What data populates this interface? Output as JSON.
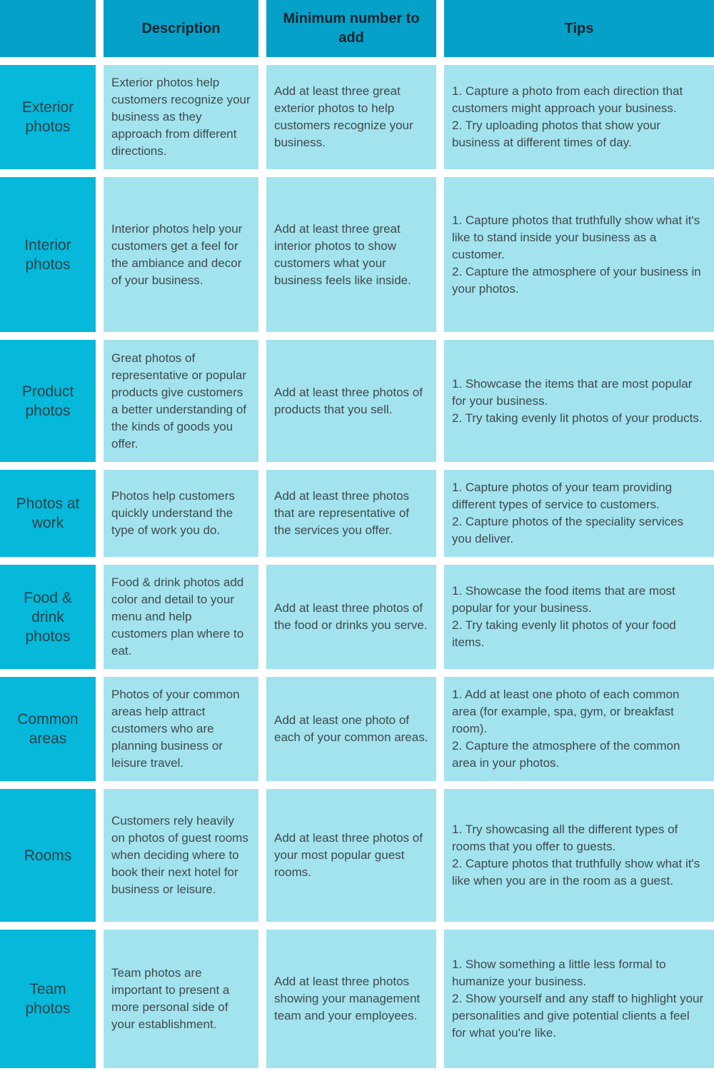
{
  "header": {
    "corner": "",
    "description": "Description",
    "minimum": "Minimum number to add",
    "tips": "Tips"
  },
  "rows": [
    {
      "label": "Exterior photos",
      "description": "Exterior photos help customers recognize your business as they approach from different directions.",
      "minimum": "Add at least three great exterior photos to help customers recognize your business.",
      "tips": "1. Capture a photo from each direction that customers might approach your business.\n2. Try uploading photos that show your business at different times of day."
    },
    {
      "label": "Interior photos",
      "description": "Interior photos help your customers get a feel for the ambiance and decor of your business.",
      "minimum": "Add at least three great interior photos to show customers what your business feels like inside.",
      "tips": "1. Capture photos that truthfully show what it's like to stand inside your business as a customer.\n2. Capture the atmosphere of your business in your photos."
    },
    {
      "label": "Product photos",
      "description": "Great photos of representative or popular products give customers a better understanding of the kinds of goods you offer.",
      "minimum": "Add at least three photos of products that you sell.",
      "tips": "1. Showcase the items that are most popular for your business.\n2. Try taking evenly lit photos of your products."
    },
    {
      "label": "Photos at work",
      "description": "Photos help customers quickly understand the type of work you do.",
      "minimum": "Add at least three photos that are representative of the services you offer.",
      "tips": "1. Capture photos of your team providing different types of service to customers.\n2. Capture photos of the speciality services you deliver."
    },
    {
      "label": "Food & drink photos",
      "description": "Food & drink photos add color and detail to your menu and help customers plan where to eat.",
      "minimum": "Add at least three photos of the food or drinks you serve.",
      "tips": "1. Showcase the food items that are most popular for your business.\n2. Try taking evenly lit photos of your food items."
    },
    {
      "label": "Common areas",
      "description": "Photos of your common areas help attract customers who are planning business or leisure travel.",
      "minimum": "Add at least one photo of each of your common areas.",
      "tips": "1. Add at least one photo of each common area (for example, spa, gym, or breakfast room).\n2. Capture the atmosphere of the common area in your photos."
    },
    {
      "label": "Rooms",
      "description": "Customers rely heavily on photos of guest rooms when deciding where to book their next hotel for business or leisure.",
      "minimum": "Add at least three photos of your most popular guest rooms.",
      "tips": "1. Try showcasing all the different types of rooms that you offer to guests.\n2. Capture photos that truthfully show what it's like when you are in the room as a guest."
    },
    {
      "label": "Team photos",
      "description": "Team photos are important to present a more personal side of your establishment.",
      "minimum": "Add at least three photos showing your management team and your employees.",
      "tips": "1. Show something a little less formal to humanize your business.\n2. Show yourself and any staff to highlight your personalities and give potential clients a feel for what you're like."
    }
  ],
  "colors": {
    "header_bg": "#05a1c8",
    "label_bg": "#06b8d9",
    "body_bg": "#a3e3ee",
    "text": "#3d4a4f"
  }
}
